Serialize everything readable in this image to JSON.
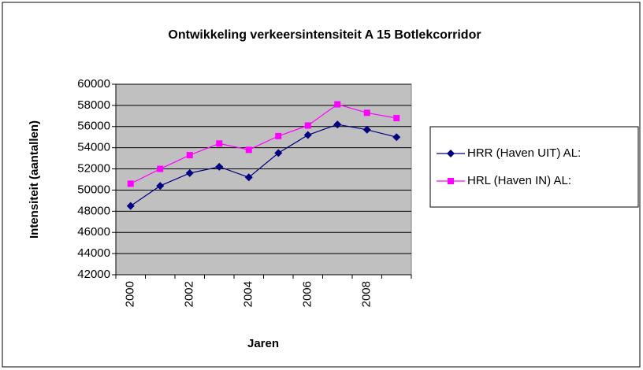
{
  "chart_data": {
    "type": "line",
    "title": "Ontwikkeling verkeersintensiteit A 15 Botlekcorridor",
    "xlabel": "Jaren",
    "ylabel": "Intensiteit (aantallen)",
    "categories": [
      2000,
      null,
      2002,
      null,
      2004,
      null,
      2006,
      null,
      2008,
      null
    ],
    "series": [
      {
        "name": "HRR (Haven UIT) AL:",
        "color": "#000080",
        "marker": "diamond",
        "values": [
          48500,
          50400,
          51600,
          52200,
          51200,
          53500,
          55200,
          56200,
          55700,
          55000
        ]
      },
      {
        "name": "HRL (Haven IN) AL:",
        "color": "#ff00ff",
        "marker": "square",
        "values": [
          50600,
          52000,
          53300,
          54400,
          53800,
          55100,
          56100,
          58100,
          57300,
          56800
        ]
      }
    ],
    "ylim": [
      42000,
      60000
    ],
    "yticks": [
      42000,
      44000,
      46000,
      48000,
      50000,
      52000,
      54000,
      56000,
      58000,
      60000
    ],
    "grid": true,
    "plot_background": "#c0c0c0",
    "legend": "right"
  }
}
